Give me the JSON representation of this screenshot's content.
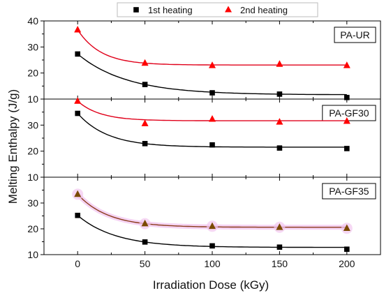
{
  "chart_data": {
    "type": "scatter",
    "xlabel": "Irradiation Dose (kGy)",
    "ylabel": "Melting Enthalpy (J/g)",
    "xlim": [
      -25,
      225
    ],
    "x_ticks": [
      0,
      50,
      100,
      150,
      200
    ],
    "legend": {
      "placement": "top-center",
      "entries": [
        {
          "name": "1st heating",
          "marker": "square",
          "color": "#000000"
        },
        {
          "name": "2nd heating",
          "marker": "triangle",
          "color": "#ff0000"
        }
      ]
    },
    "panels": [
      {
        "label": "PA-UR",
        "ylim": [
          10,
          40
        ],
        "y_ticks": [
          "10",
          "20",
          "30",
          "40"
        ],
        "series": [
          {
            "color": "#000000",
            "fit_color": "#000000",
            "marker": "square",
            "x": [
              0,
              50,
              100,
              150,
              200
            ],
            "values": [
              27.3,
              15.6,
              12.4,
              11.9,
              10.6
            ]
          },
          {
            "color": "#ff0000",
            "fit_color": "#e0001a",
            "marker": "triangle",
            "x": [
              0,
              50,
              100,
              150,
              200
            ],
            "values": [
              36.6,
              23.8,
              22.9,
              23.4,
              22.9
            ]
          }
        ]
      },
      {
        "label": "PA-GF30",
        "ylim": [
          10,
          40
        ],
        "y_ticks": [
          "10",
          "20",
          "30",
          ""
        ],
        "series": [
          {
            "color": "#000000",
            "fit_color": "#000000",
            "marker": "square",
            "x": [
              0,
              50,
              100,
              150,
              200
            ],
            "values": [
              34.5,
              22.9,
              22.4,
              21.2,
              21.0
            ]
          },
          {
            "color": "#ff0000",
            "fit_color": "#e0001a",
            "marker": "triangle",
            "x": [
              0,
              50,
              100,
              150,
              200
            ],
            "values": [
              39.2,
              30.6,
              32.3,
              31.2,
              31.5
            ]
          }
        ]
      },
      {
        "label": "PA-GF35",
        "ylim": [
          10,
          40
        ],
        "y_ticks": [
          "10",
          "20",
          "30",
          ""
        ],
        "series": [
          {
            "color": "#000000",
            "fit_color": "#000000",
            "marker": "square",
            "x": [
              0,
              50,
              100,
              150,
              200
            ],
            "values": [
              25.2,
              14.9,
              13.4,
              12.9,
              12.1
            ]
          },
          {
            "color": "#7a4a00",
            "fit_color": "#8a3a1a",
            "marker": "triangle",
            "glow": "#f2c8f0",
            "x": [
              0,
              50,
              100,
              150,
              200
            ],
            "values": [
              33.4,
              22.0,
              21.0,
              20.6,
              20.2
            ]
          }
        ]
      }
    ]
  }
}
